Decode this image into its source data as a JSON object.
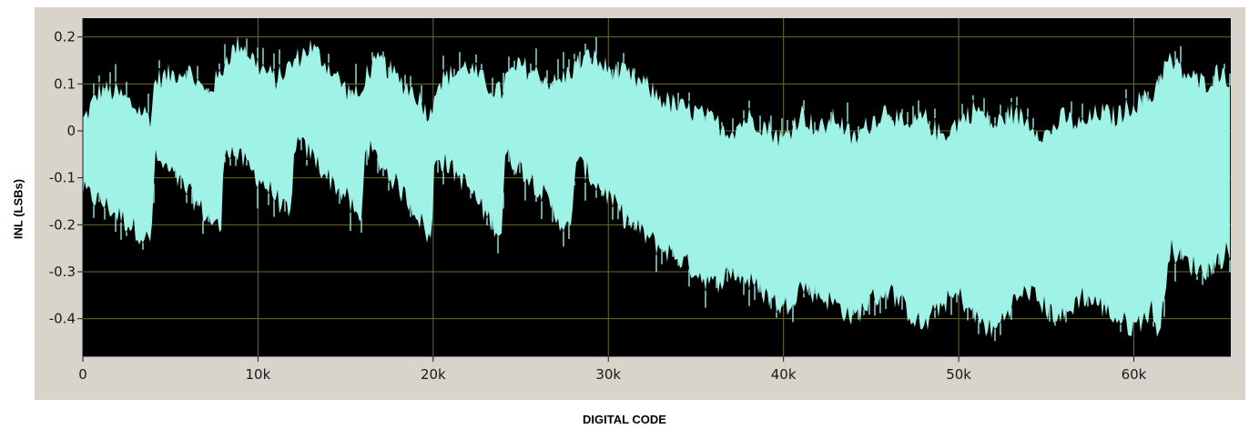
{
  "chart_data": {
    "type": "area",
    "title": "",
    "xlabel": "DIGITAL CODE",
    "ylabel": "INL (LSBs)",
    "xlim": [
      0,
      65535
    ],
    "ylim": [
      -0.48,
      0.24
    ],
    "x_ticks": [
      0,
      10000,
      20000,
      30000,
      40000,
      50000,
      60000
    ],
    "x_tick_labels": [
      "0",
      "10k",
      "20k",
      "30k",
      "40k",
      "50k",
      "60k"
    ],
    "y_ticks": [
      0.2,
      0.1,
      0,
      -0.1,
      -0.2,
      -0.3,
      -0.4
    ],
    "y_tick_labels": [
      "0.2",
      "0.1",
      "0",
      "-0.1",
      "-0.2",
      "-0.3",
      "-0.4"
    ],
    "grid": true,
    "colors": {
      "plot_background": "#000000",
      "fill": "#9ff2e6",
      "grid": "#6b6b2a",
      "frame": "#d8d4cc"
    },
    "series": [
      {
        "x": [
          0,
          1000,
          2000,
          3000,
          3900,
          4100,
          5000,
          6000,
          7000,
          7900,
          8100,
          9000,
          10000,
          11000,
          11900,
          12100,
          13000,
          14000,
          15000,
          15900,
          16100,
          17000,
          18000,
          19000,
          19900,
          20100,
          21000,
          22000,
          23000,
          23900,
          24100,
          25000,
          26000,
          27000,
          27900,
          28100,
          29000,
          30000,
          31000,
          32000,
          33000,
          34000,
          35000,
          36000,
          37000,
          38000,
          39000,
          40000,
          41000,
          42000,
          43000,
          44000,
          45000,
          46000,
          47000,
          48000,
          49000,
          50000,
          51000,
          52000,
          53000,
          54000,
          55000,
          56000,
          57000,
          58000,
          59000,
          60000,
          61000,
          61500,
          62000,
          63000,
          64000,
          65000,
          65535
        ],
        "upper": [
          0.02,
          0.09,
          0.08,
          0.05,
          0.03,
          0.11,
          0.12,
          0.13,
          0.08,
          0.12,
          0.15,
          0.19,
          0.14,
          0.11,
          0.14,
          0.15,
          0.18,
          0.14,
          0.09,
          0.07,
          0.12,
          0.15,
          0.11,
          0.08,
          0.03,
          0.1,
          0.12,
          0.14,
          0.1,
          0.08,
          0.11,
          0.14,
          0.12,
          0.1,
          0.13,
          0.14,
          0.16,
          0.13,
          0.12,
          0.1,
          0.07,
          0.05,
          0.04,
          0.02,
          0.0,
          0.03,
          0.01,
          -0.02,
          0.04,
          0.0,
          0.03,
          -0.02,
          0.02,
          0.05,
          0.0,
          0.03,
          -0.01,
          0.02,
          0.05,
          0.01,
          0.04,
          0.02,
          -0.01,
          0.03,
          0.01,
          0.04,
          0.03,
          0.06,
          0.07,
          0.12,
          0.15,
          0.12,
          0.1,
          0.13,
          0.11
        ],
        "lower": [
          -0.13,
          -0.15,
          -0.18,
          -0.21,
          -0.24,
          -0.06,
          -0.09,
          -0.13,
          -0.18,
          -0.21,
          -0.03,
          -0.06,
          -0.1,
          -0.14,
          -0.19,
          -0.02,
          -0.05,
          -0.1,
          -0.14,
          -0.2,
          -0.03,
          -0.07,
          -0.12,
          -0.17,
          -0.24,
          -0.05,
          -0.08,
          -0.12,
          -0.18,
          -0.22,
          -0.05,
          -0.08,
          -0.12,
          -0.18,
          -0.22,
          -0.06,
          -0.1,
          -0.14,
          -0.19,
          -0.22,
          -0.25,
          -0.27,
          -0.3,
          -0.33,
          -0.3,
          -0.32,
          -0.35,
          -0.38,
          -0.33,
          -0.35,
          -0.37,
          -0.4,
          -0.36,
          -0.34,
          -0.38,
          -0.42,
          -0.37,
          -0.35,
          -0.4,
          -0.43,
          -0.37,
          -0.34,
          -0.38,
          -0.4,
          -0.35,
          -0.37,
          -0.4,
          -0.42,
          -0.38,
          -0.44,
          -0.25,
          -0.28,
          -0.3,
          -0.27,
          -0.25
        ]
      }
    ]
  }
}
